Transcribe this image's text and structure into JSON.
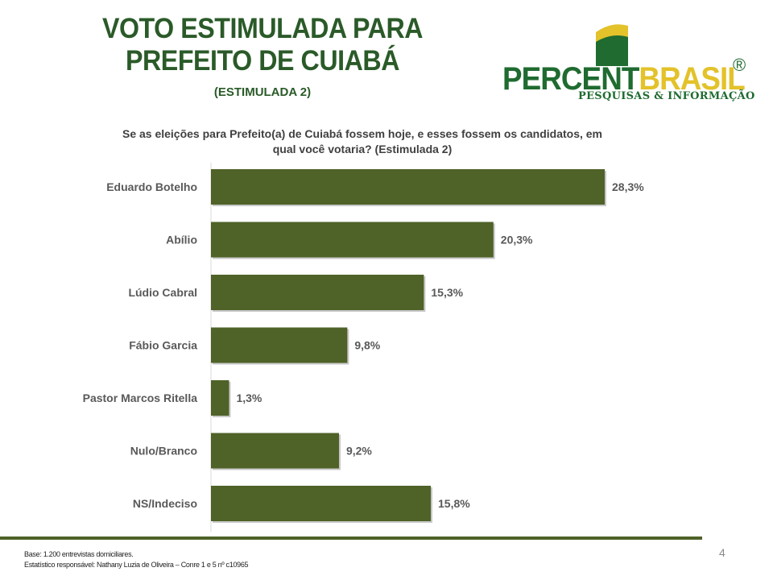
{
  "header": {
    "title_line1": "VOTO ESTIMULADA PARA",
    "title_line2": "PREFEITO DE CUIABÁ",
    "subtitle": "(ESTIMULADA 2)"
  },
  "logo": {
    "word_part1": "PERCENT",
    "word_part2": "BRASIL",
    "registered": "®",
    "tagline": "PESQUISAS & INFORMAÇÃO"
  },
  "chart_data": {
    "type": "bar",
    "orientation": "horizontal",
    "title": "Se as eleições para Prefeito(a) de Cuiabá fossem hoje, e esses fossem os candidatos, em qual você votaria? (Estimulada 2)",
    "title_line1": "Se as eleições para Prefeito(a) de Cuiabá fossem hoje, e esses fossem os candidatos, em",
    "title_line2": "qual você votaria? (Estimulada 2)",
    "categories": [
      "Eduardo Botelho",
      "Abílio",
      "Lúdio Cabral",
      "Fábio Garcia",
      "Pastor Marcos Ritella",
      "Nulo/Branco",
      "NS/Indeciso"
    ],
    "values": [
      28.3,
      20.3,
      15.3,
      9.8,
      1.3,
      9.2,
      15.8
    ],
    "value_labels": [
      "28,3%",
      "20,3%",
      "15,3%",
      "9,8%",
      "1,3%",
      "9,2%",
      "15,8%"
    ],
    "unit": "%",
    "bar_color": "#4f6228",
    "grid": false
  },
  "footer": {
    "line1": "Base: 1.200 entrevistas domiciliares.",
    "line2": "Estatístico responsável: Nathany Luzia de Oliveira – Conre 1 e 5 nº c10965",
    "page_number": "4"
  }
}
